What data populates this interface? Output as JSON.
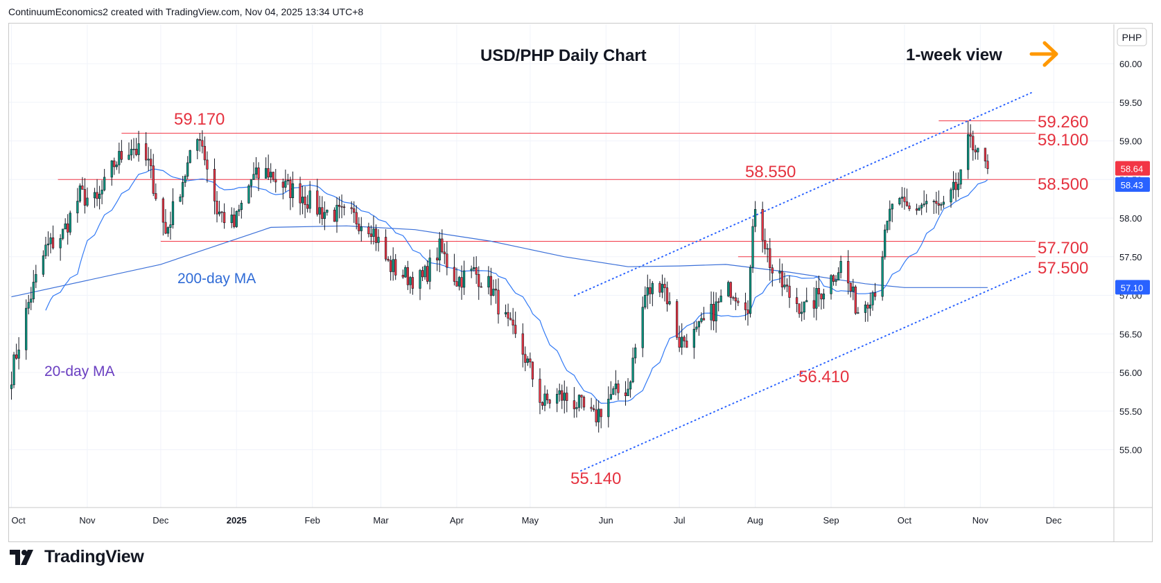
{
  "header": {
    "credit": "ContinuumEconomics2 created with TradingView.com, Nov 04, 2025 13:34 UTC+8"
  },
  "footer": {
    "logo_text": "TradingView"
  },
  "chart_data": {
    "type": "candlestick",
    "title": "USD/PHP Daily Chart",
    "subtitle": "1-week view",
    "currency": "PHP",
    "y_ticks": [
      "60.00",
      "59.50",
      "59.00",
      "58.50",
      "58.00",
      "57.50",
      "57.00",
      "56.50",
      "56.00",
      "55.50",
      "55.00"
    ],
    "ylim": [
      54.55,
      60.45
    ],
    "x_ticks": [
      "Oct",
      "Nov",
      "Dec",
      "2025",
      "Feb",
      "Mar",
      "Apr",
      "May",
      "Jun",
      "Jul",
      "Aug",
      "Sep",
      "Oct",
      "Nov",
      "Dec"
    ],
    "last_price": "58.64",
    "ma20_value": "58.43",
    "ma200_value": "57.10",
    "levels": [
      {
        "label": "59.260",
        "value": 59.26
      },
      {
        "label": "59.100",
        "value": 59.1
      },
      {
        "label": "58.500",
        "value": 58.5
      },
      {
        "label": "57.700",
        "value": 57.7
      },
      {
        "label": "57.500",
        "value": 57.5
      }
    ],
    "annotations": [
      {
        "label": "59.170"
      },
      {
        "label": "58.550"
      },
      {
        "label": "56.410"
      },
      {
        "label": "55.140"
      }
    ],
    "ma_labels": {
      "ma20": "20-day MA",
      "ma200": "200-day MA"
    },
    "colors": {
      "up": "#089981",
      "down": "#f23645",
      "ma20": "#3179f5",
      "ma200": "#3a6fd8",
      "level": "#f23645",
      "channel": "#2962ff",
      "arrow": "#ff9800",
      "ma20_label": "#6a3fc1"
    },
    "candle_anchors": [
      {
        "date": "2024-10-01",
        "close": 55.98
      },
      {
        "date": "2024-10-08",
        "close": 56.9
      },
      {
        "date": "2024-10-15",
        "close": 57.6
      },
      {
        "date": "2024-10-22",
        "close": 57.8
      },
      {
        "date": "2024-10-29",
        "close": 58.3
      },
      {
        "date": "2024-11-05",
        "close": 58.2
      },
      {
        "date": "2024-11-12",
        "close": 58.7
      },
      {
        "date": "2024-11-19",
        "close": 58.95
      },
      {
        "date": "2024-11-26",
        "close": 58.7
      },
      {
        "date": "2024-12-03",
        "close": 57.8
      },
      {
        "date": "2024-12-10",
        "close": 58.5
      },
      {
        "date": "2024-12-17",
        "close": 59.1
      },
      {
        "date": "2024-12-24",
        "close": 58.1
      },
      {
        "date": "2024-12-31",
        "close": 57.9
      },
      {
        "date": "2025-01-07",
        "close": 58.5
      },
      {
        "date": "2025-01-14",
        "close": 58.6
      },
      {
        "date": "2025-01-21",
        "close": 58.4
      },
      {
        "date": "2025-01-28",
        "close": 58.3
      },
      {
        "date": "2025-02-04",
        "close": 58.1
      },
      {
        "date": "2025-02-11",
        "close": 58.05
      },
      {
        "date": "2025-02-18",
        "close": 58.0
      },
      {
        "date": "2025-02-25",
        "close": 57.9
      },
      {
        "date": "2025-03-04",
        "close": 57.4
      },
      {
        "date": "2025-03-11",
        "close": 57.25
      },
      {
        "date": "2025-03-18",
        "close": 57.2
      },
      {
        "date": "2025-03-25",
        "close": 57.6
      },
      {
        "date": "2025-04-01",
        "close": 57.2
      },
      {
        "date": "2025-04-08",
        "close": 57.3
      },
      {
        "date": "2025-04-15",
        "close": 57.1
      },
      {
        "date": "2025-04-22",
        "close": 56.6
      },
      {
        "date": "2025-04-29",
        "close": 56.2
      },
      {
        "date": "2025-05-06",
        "close": 55.6
      },
      {
        "date": "2025-05-13",
        "close": 55.7
      },
      {
        "date": "2025-05-20",
        "close": 55.6
      },
      {
        "date": "2025-05-27",
        "close": 55.4
      },
      {
        "date": "2025-06-03",
        "close": 55.7
      },
      {
        "date": "2025-06-10",
        "close": 55.8
      },
      {
        "date": "2025-06-17",
        "close": 57.0
      },
      {
        "date": "2025-06-24",
        "close": 57.2
      },
      {
        "date": "2025-07-01",
        "close": 56.4
      },
      {
        "date": "2025-07-08",
        "close": 56.5
      },
      {
        "date": "2025-07-15",
        "close": 56.8
      },
      {
        "date": "2025-07-22",
        "close": 57.1
      },
      {
        "date": "2025-07-29",
        "close": 56.9
      },
      {
        "date": "2025-08-01",
        "close": 58.2
      },
      {
        "date": "2025-08-08",
        "close": 57.3
      },
      {
        "date": "2025-08-15",
        "close": 57.0
      },
      {
        "date": "2025-08-22",
        "close": 56.8
      },
      {
        "date": "2025-08-29",
        "close": 57.1
      },
      {
        "date": "2025-09-05",
        "close": 57.4
      },
      {
        "date": "2025-09-12",
        "close": 56.8
      },
      {
        "date": "2025-09-19",
        "close": 57.1
      },
      {
        "date": "2025-09-26",
        "close": 58.2
      },
      {
        "date": "2025-10-03",
        "close": 58.1
      },
      {
        "date": "2025-10-10",
        "close": 58.2
      },
      {
        "date": "2025-10-17",
        "close": 58.1
      },
      {
        "date": "2025-10-24",
        "close": 58.5
      },
      {
        "date": "2025-10-28",
        "close": 59.1
      },
      {
        "date": "2025-10-31",
        "close": 58.8
      },
      {
        "date": "2025-11-04",
        "close": 58.64
      }
    ]
  }
}
